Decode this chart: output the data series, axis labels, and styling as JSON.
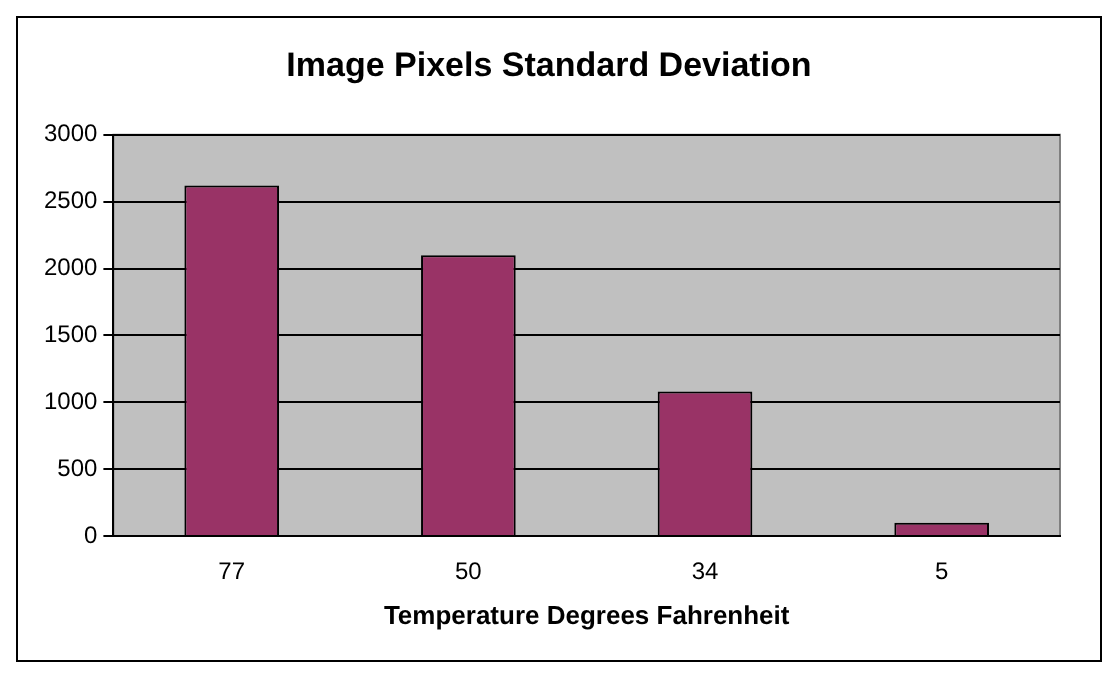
{
  "chart_data": {
    "type": "bar",
    "title": "Image Pixels Standard Deviation",
    "xlabel": "Temperature Degrees Fahrenheit",
    "categories": [
      "77",
      "50",
      "34",
      "5"
    ],
    "values": [
      2620,
      2100,
      1080,
      100
    ],
    "color": "#993366",
    "ylim": [
      0,
      3000
    ],
    "yticks": [
      0,
      500,
      1000,
      1500,
      2000,
      2500,
      3000
    ],
    "grid": "y"
  }
}
